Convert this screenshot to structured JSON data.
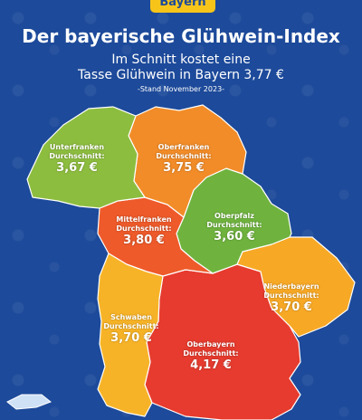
{
  "logo": "Bayern",
  "title": "Der bayerische Glühwein-Index",
  "subtitle_line1": "Im Schnitt kostet eine",
  "subtitle_line2": "Tasse Glühwein in Bayern 3,77 €",
  "stand": "-Stand November 2023-",
  "regions": [
    {
      "name": "Unterfranken",
      "avg_label": "Durchschnitt:",
      "value": "3,67 €",
      "color": "#8dbd3f"
    },
    {
      "name": "Oberfranken",
      "avg_label": "Durchschnitt:",
      "value": "3,75 €",
      "color": "#f28c28"
    },
    {
      "name": "Oberpfalz",
      "avg_label": "Durchschnitt:",
      "value": "3,60 €",
      "color": "#6fb33e"
    },
    {
      "name": "Mittelfranken",
      "avg_label": "Durchschnitt:",
      "value": "3,80 €",
      "color": "#ee5a2a"
    },
    {
      "name": "Niederbayern",
      "avg_label": "Durchschnitt:",
      "value": "3,70 €",
      "color": "#f7a825"
    },
    {
      "name": "Schwaben",
      "avg_label": "Durchschnitt:",
      "value": "3,70 €",
      "color": "#f7b327"
    },
    {
      "name": "Oberbayern",
      "avg_label": "Durchschnitt:",
      "value": "4,17 €",
      "color": "#e63b2e"
    }
  ]
}
